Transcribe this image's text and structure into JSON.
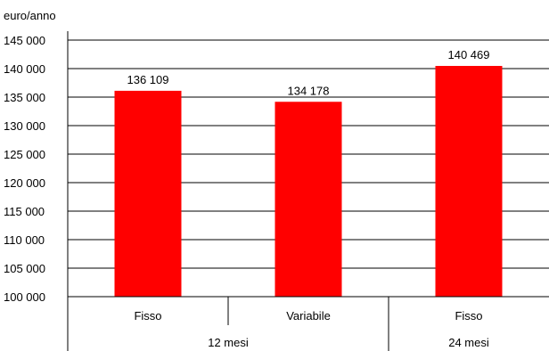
{
  "chart_data": {
    "type": "bar",
    "unit_label": "euro/anno",
    "categories": [
      "Fisso",
      "Variabile",
      "Fisso"
    ],
    "groups": [
      {
        "label": "12 mesi",
        "categories": [
          "Fisso",
          "Variabile"
        ]
      },
      {
        "label": "24 mesi",
        "categories": [
          "Fisso"
        ]
      }
    ],
    "values": [
      136109,
      134178,
      140469
    ],
    "data_labels": [
      "136 109",
      "134 178",
      "140 469"
    ],
    "ylim": [
      100000,
      145000
    ],
    "y_ticks": [
      100000,
      105000,
      110000,
      115000,
      120000,
      125000,
      130000,
      135000,
      140000,
      145000
    ],
    "y_tick_labels": [
      "100 000",
      "105 000",
      "110 000",
      "115 000",
      "120 000",
      "125 000",
      "130 000",
      "135 000",
      "140 000",
      "145 000"
    ],
    "bar_color": "#ff0000",
    "grid": true,
    "legend": "none"
  }
}
